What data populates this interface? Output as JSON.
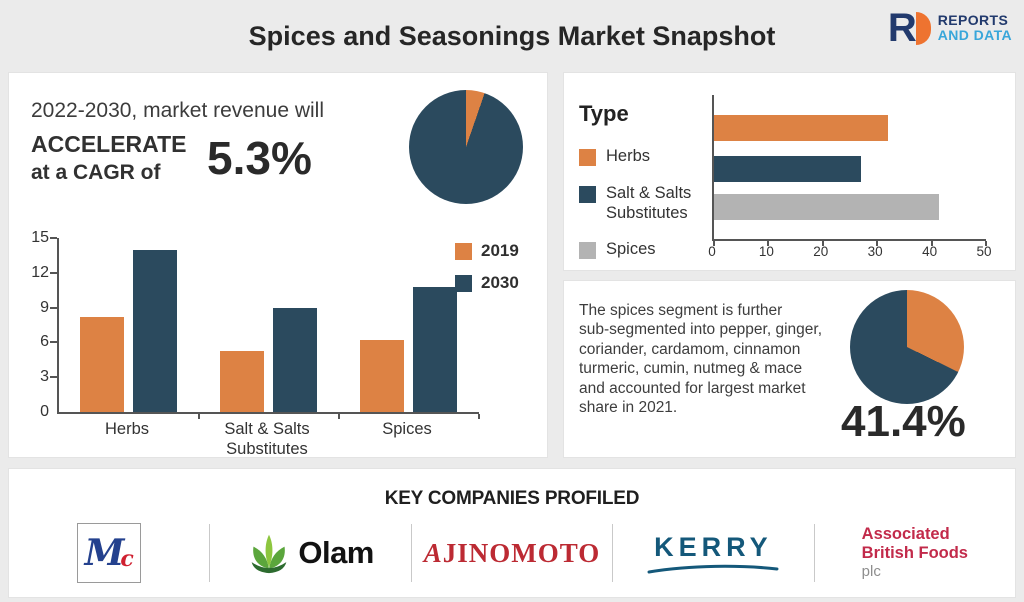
{
  "header": {
    "title": "Spices and Seasonings Market Snapshot",
    "logo": {
      "letter": "R",
      "line1": "REPORTS",
      "line2": "AND DATA"
    }
  },
  "left_panel": {
    "line1": "2022-2030, market revenue will",
    "line2": "ACCELERATE",
    "line3": "at a CAGR of",
    "cagr": "5.3%"
  },
  "right_bottom": {
    "lines": [
      "The spices segment is further",
      "sub-segmented into pepper, ginger,",
      "coriander, cardamom, cinnamon",
      "turmeric, cumin, nutmeg & mace",
      "and accounted for largest market",
      "share in 2021."
    ]
  },
  "companies": {
    "heading": "KEY COMPANIES PROFILED",
    "mccormick": {
      "m": "M",
      "c": "c"
    },
    "olam": {
      "wordmark": "Olam"
    },
    "ajinomoto": {
      "wordmark": "AJINOMOTO"
    },
    "kerry": {
      "wordmark": "KERRY"
    },
    "abf": {
      "line1": "Associated",
      "line2": "British Foods",
      "line3": "plc"
    }
  },
  "colors": {
    "orange": "#dd8244",
    "dark_blue": "#2b4a5e",
    "gray": "#b3b3b3",
    "background": "#ebebeb"
  },
  "chart_data": [
    {
      "type": "pie",
      "name": "cagr-pie",
      "values": [
        5.3,
        94.7
      ],
      "colors": [
        "#dd8244",
        "#2b4a5e"
      ],
      "legend_position": "none"
    },
    {
      "type": "bar",
      "name": "revenue-2019-vs-2030",
      "categories": [
        "Herbs",
        "Salt & Salts Substitutes",
        "Spices"
      ],
      "series": [
        {
          "name": "2019",
          "color": "#dd8244",
          "values": [
            8.2,
            5.3,
            6.2
          ]
        },
        {
          "name": "2030",
          "color": "#2b4a5e",
          "values": [
            14,
            9,
            10.8
          ]
        }
      ],
      "ylim": [
        0,
        15
      ],
      "yticks": [
        0,
        3,
        6,
        9,
        12,
        15
      ],
      "grid": false,
      "legend_position": "top-right"
    },
    {
      "type": "bar",
      "orientation": "horizontal",
      "name": "market-share-by-type",
      "title": "Type",
      "categories": [
        "Herbs",
        "Salt & Salts Substitutes",
        "Spices"
      ],
      "values": [
        32,
        27,
        41.4
      ],
      "colors": [
        "#dd8244",
        "#2b4a5e",
        "#b3b3b3"
      ],
      "xlim": [
        0,
        50
      ],
      "xticks": [
        0,
        10,
        20,
        30,
        40,
        50
      ],
      "grid": false,
      "legend_position": "left"
    },
    {
      "type": "pie",
      "name": "spices-share-pie",
      "label": "41.4%",
      "values": [
        41.4,
        58.6
      ],
      "colors": [
        "#dd8244",
        "#2b4a5e"
      ],
      "first_slice_drawn_deg": 116,
      "legend_position": "none"
    }
  ]
}
